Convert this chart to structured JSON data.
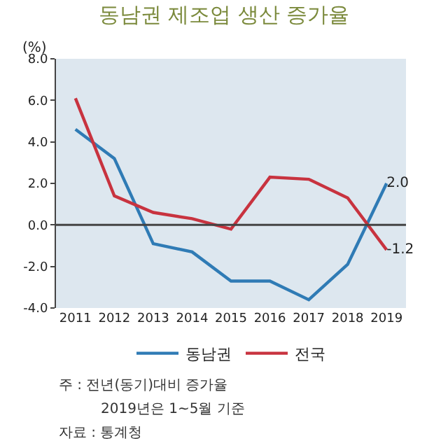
{
  "chart_data": {
    "type": "line",
    "title": "동남권 제조업 생산 증가율",
    "ylabel": "(%)",
    "categories": [
      "2011",
      "2012",
      "2013",
      "2014",
      "2015",
      "2016",
      "2017",
      "2018",
      "2019"
    ],
    "series": [
      {
        "name": "동남권",
        "color": "#2f7bb5",
        "values": [
          4.6,
          3.2,
          -0.9,
          -1.3,
          -2.7,
          -2.7,
          -3.6,
          -1.9,
          2.0
        ],
        "value_labels": [
          null,
          null,
          null,
          null,
          null,
          null,
          null,
          null,
          "2.0"
        ]
      },
      {
        "name": "전국",
        "color": "#c8333f",
        "values": [
          6.1,
          1.4,
          0.6,
          0.3,
          -0.2,
          2.3,
          2.2,
          1.3,
          -1.2
        ],
        "value_labels": [
          null,
          null,
          null,
          null,
          null,
          null,
          null,
          null,
          "-1.2"
        ]
      }
    ],
    "ylim": [
      -4,
      8
    ],
    "yticks": [
      {
        "value": -4,
        "label": "-4.0"
      },
      {
        "value": -2,
        "label": "-2.0"
      },
      {
        "value": 0,
        "label": "0.0"
      },
      {
        "value": 2,
        "label": "2.0"
      },
      {
        "value": 4,
        "label": "4.0"
      },
      {
        "value": 6,
        "label": "6.0"
      },
      {
        "value": 8,
        "label": "8.0"
      }
    ],
    "ref_lines": [
      {
        "axis": "y",
        "value": 0,
        "color": "#444444"
      }
    ],
    "grid": false,
    "legend": "bottom",
    "marker": "none",
    "line_style": "solid",
    "annotations": [
      "주 : 전년(동기)대비 증가율",
      "2019년은 1~5월 기준",
      "자료 : 통계청"
    ]
  }
}
